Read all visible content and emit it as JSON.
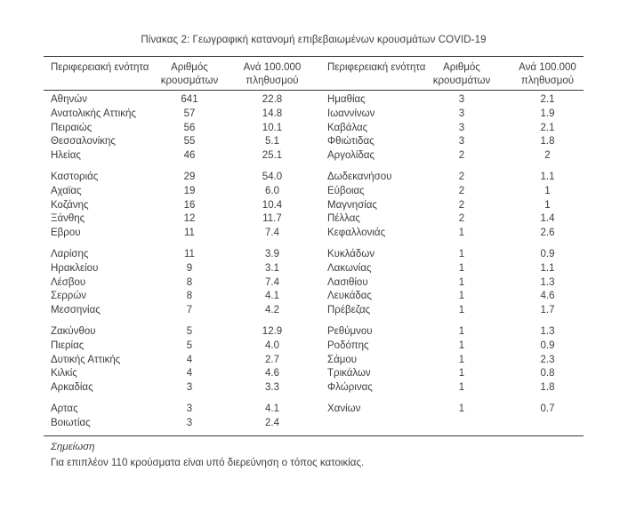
{
  "page": {
    "title": "Πίνακας 2: Γεωγραφική κατανομή επιβεβαιωμένων κρουσμάτων COVID-19"
  },
  "table": {
    "headers": {
      "region_left": "Περιφερειακή ενότητα",
      "cases_left": "Αριθμός\nκρουσμάτων",
      "rate_left": "Ανά 100.000\nπληθυσμού",
      "region_right": "Περιφερειακή ενότητα",
      "cases_right": "Αριθμός\nκρουσμάτων",
      "rate_right": "Ανά 100.000\nπληθυσμού"
    },
    "groups": [
      {
        "rows": [
          {
            "left_region": "Αθηνών",
            "left_cases": "641",
            "left_rate": "22.8",
            "right_region": "Ημαθίας",
            "right_cases": "3",
            "right_rate": "2.1"
          },
          {
            "left_region": "Ανατολικής Αττικής",
            "left_cases": "57",
            "left_rate": "14.8",
            "right_region": "Ιωαννίνων",
            "right_cases": "3",
            "right_rate": "1.9"
          },
          {
            "left_region": "Πειραιώς",
            "left_cases": "56",
            "left_rate": "10.1",
            "right_region": "Καβάλας",
            "right_cases": "3",
            "right_rate": "2.1"
          },
          {
            "left_region": "Θεσσαλονίκης",
            "left_cases": "55",
            "left_rate": "5.1",
            "right_region": "Φθιώτιδας",
            "right_cases": "3",
            "right_rate": "1.8"
          },
          {
            "left_region": "Ηλείας",
            "left_cases": "46",
            "left_rate": "25.1",
            "right_region": "Αργολίδας",
            "right_cases": "2",
            "right_rate": "2"
          }
        ]
      },
      {
        "rows": [
          {
            "left_region": "Καστοριάς",
            "left_cases": "29",
            "left_rate": "54.0",
            "right_region": "Δωδεκανήσου",
            "right_cases": "2",
            "right_rate": "1.1"
          },
          {
            "left_region": "Αχαϊας",
            "left_cases": "19",
            "left_rate": "6.0",
            "right_region": "Εύβοιας",
            "right_cases": "2",
            "right_rate": "1"
          },
          {
            "left_region": "Κοζάνης",
            "left_cases": "16",
            "left_rate": "10.4",
            "right_region": "Μαγνησίας",
            "right_cases": "2",
            "right_rate": "1"
          },
          {
            "left_region": "Ξάνθης",
            "left_cases": "12",
            "left_rate": "11.7",
            "right_region": "Πέλλας",
            "right_cases": "2",
            "right_rate": "1.4"
          },
          {
            "left_region": "Εβρου",
            "left_cases": "11",
            "left_rate": "7.4",
            "right_region": "Κεφαλλονιάς",
            "right_cases": "1",
            "right_rate": "2.6"
          }
        ]
      },
      {
        "rows": [
          {
            "left_region": "Λαρίσης",
            "left_cases": "11",
            "left_rate": "3.9",
            "right_region": "Κυκλάδων",
            "right_cases": "1",
            "right_rate": "0.9"
          },
          {
            "left_region": "Ηρακλείου",
            "left_cases": "9",
            "left_rate": "3.1",
            "right_region": "Λακωνίας",
            "right_cases": "1",
            "right_rate": "1.1"
          },
          {
            "left_region": "Λέσβου",
            "left_cases": "8",
            "left_rate": "7.4",
            "right_region": "Λασιθίου",
            "right_cases": "1",
            "right_rate": "1.3"
          },
          {
            "left_region": "Σερρών",
            "left_cases": "8",
            "left_rate": "4.1",
            "right_region": "Λευκάδας",
            "right_cases": "1",
            "right_rate": "4.6"
          },
          {
            "left_region": "Μεσσηνίας",
            "left_cases": "7",
            "left_rate": "4.2",
            "right_region": "Πρέβεζας",
            "right_cases": "1",
            "right_rate": "1.7"
          }
        ]
      },
      {
        "rows": [
          {
            "left_region": "Ζακύνθου",
            "left_cases": "5",
            "left_rate": "12.9",
            "right_region": "Ρεθύμνου",
            "right_cases": "1",
            "right_rate": "1.3"
          },
          {
            "left_region": "Πιερίας",
            "left_cases": "5",
            "left_rate": "4.0",
            "right_region": "Ροδόπης",
            "right_cases": "1",
            "right_rate": "0.9"
          },
          {
            "left_region": "Δυτικής Αττικής",
            "left_cases": "4",
            "left_rate": "2.7",
            "right_region": "Σάμου",
            "right_cases": "1",
            "right_rate": "2.3"
          },
          {
            "left_region": "Κιλκίς",
            "left_cases": "4",
            "left_rate": "4.6",
            "right_region": "Τρικάλων",
            "right_cases": "1",
            "right_rate": "0.8"
          },
          {
            "left_region": "Αρκαδίας",
            "left_cases": "3",
            "left_rate": "3.3",
            "right_region": "Φλώρινας",
            "right_cases": "1",
            "right_rate": "1.8"
          }
        ]
      },
      {
        "rows": [
          {
            "left_region": "Αρτας",
            "left_cases": "3",
            "left_rate": "4.1",
            "right_region": "Χανίων",
            "right_cases": "1",
            "right_rate": "0.7"
          },
          {
            "left_region": "Βοιωτίας",
            "left_cases": "3",
            "left_rate": "2.4",
            "right_region": "",
            "right_cases": "",
            "right_rate": ""
          }
        ]
      }
    ]
  },
  "note": {
    "label": "Σημείωση",
    "text": "Για επιπλέον 110 κρούσματα είναι υπό διερεύνηση ο τόπος κατοικίας."
  },
  "colors": {
    "text": "#3d3d3d",
    "border": "#3a3a3a",
    "background": "#ffffff"
  }
}
